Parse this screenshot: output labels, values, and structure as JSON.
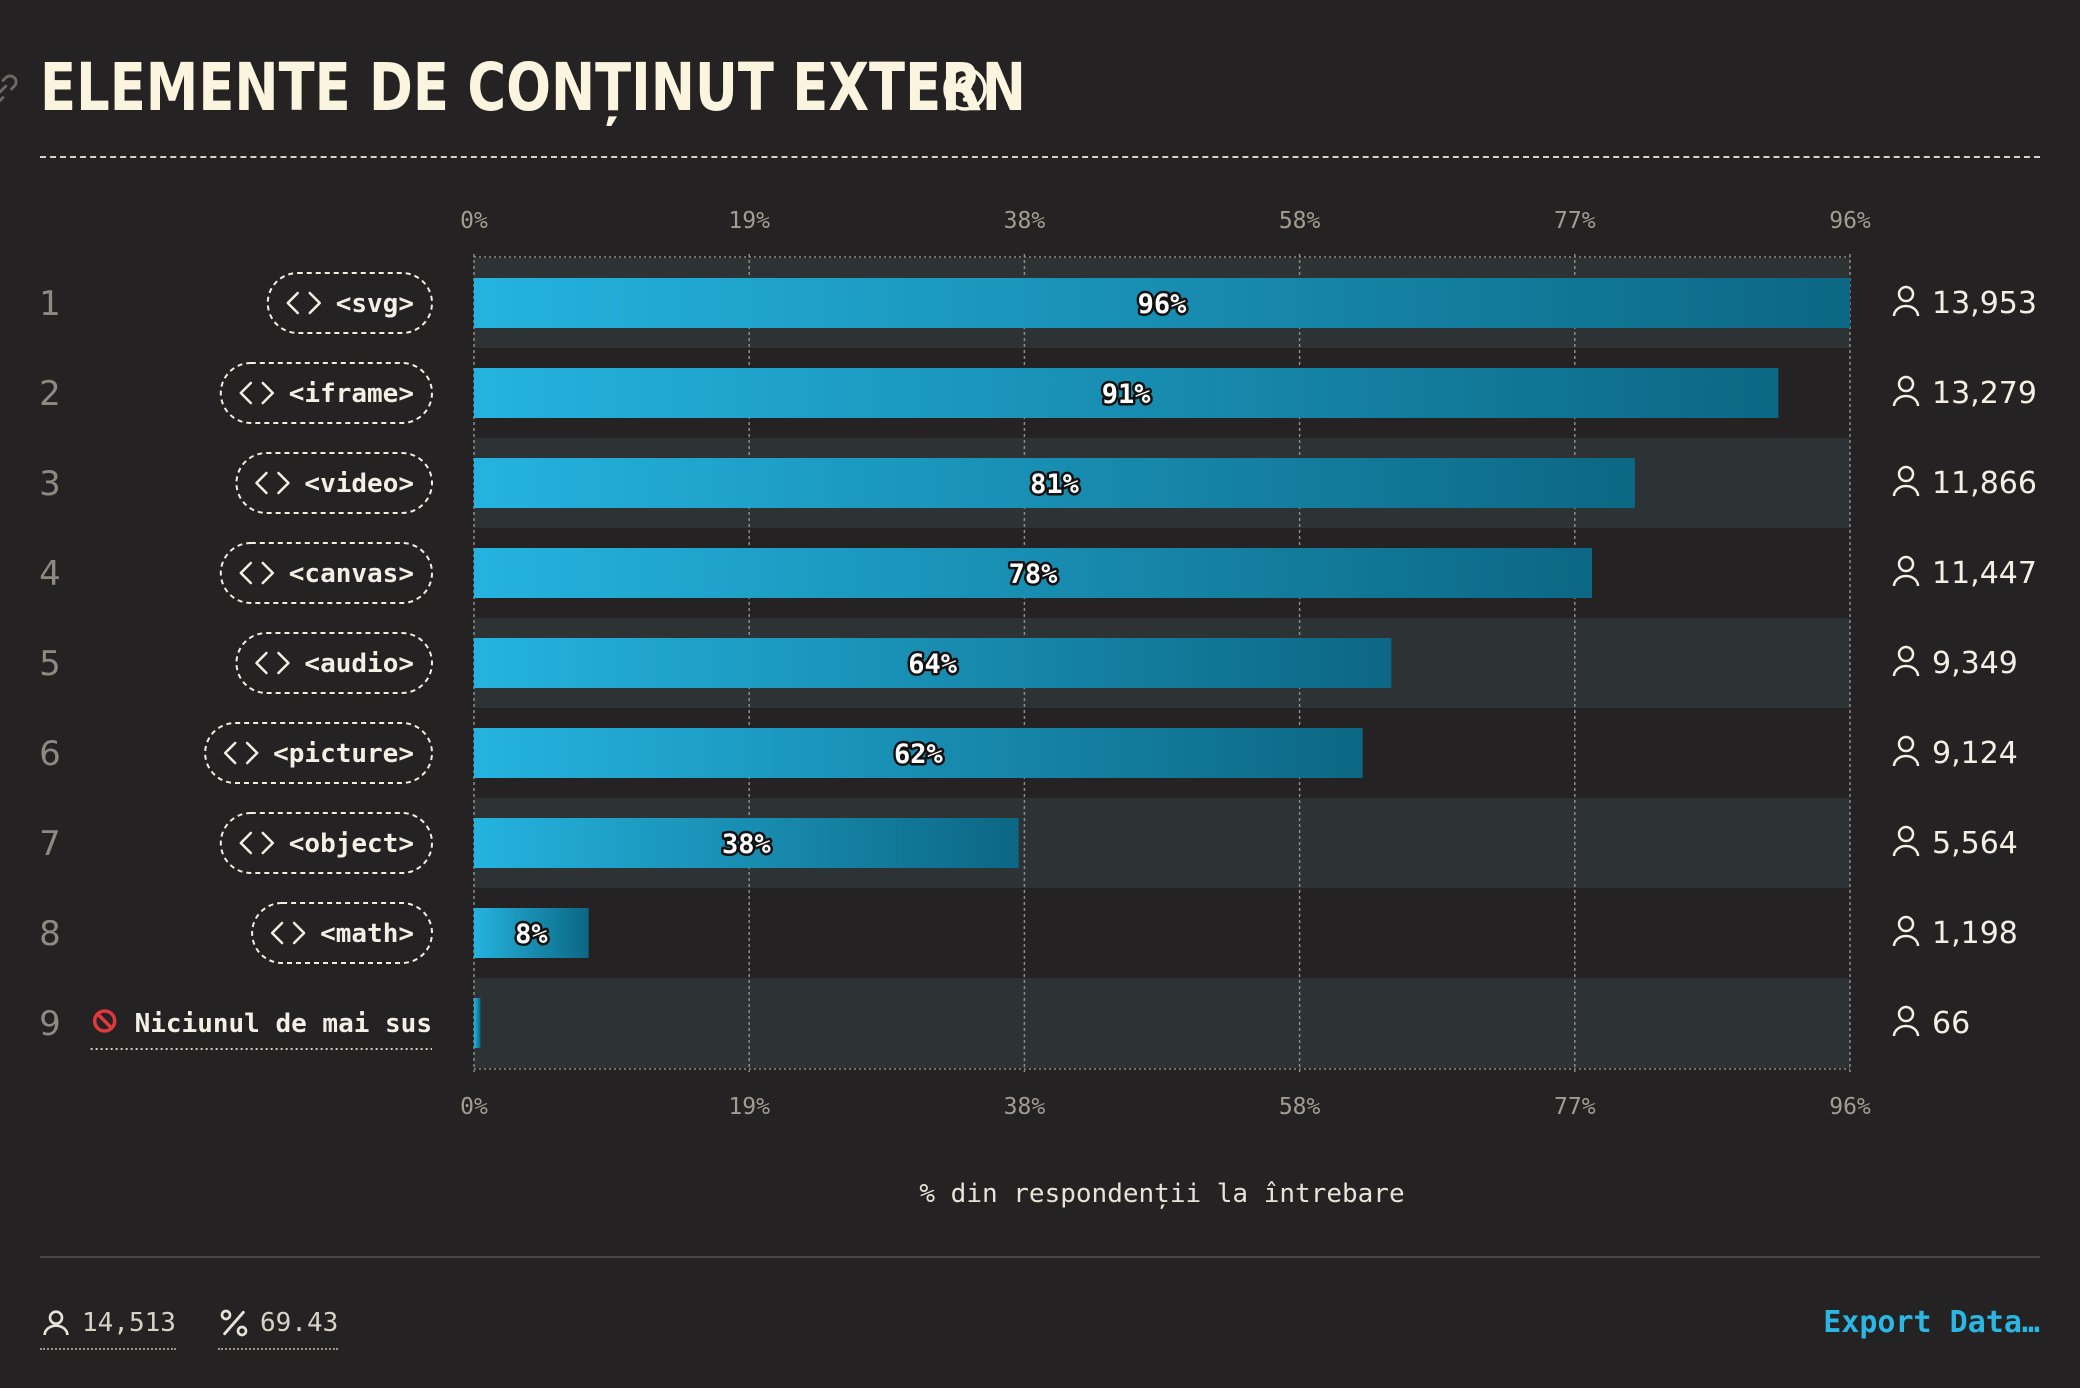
{
  "header": {
    "title": "ELEMENTE DE CONȚINUT EXTERN",
    "link_icon": "link-icon",
    "help_icon": "question-circle-icon"
  },
  "chart_data": {
    "type": "bar",
    "orientation": "horizontal",
    "title": "ELEMENTE DE CONȚINUT EXTERN",
    "xlabel": "% din respondenții la întrebare",
    "xlim": [
      0,
      96
    ],
    "xticks": [
      "0%",
      "19%",
      "38%",
      "58%",
      "77%",
      "96%"
    ],
    "xtick_values": [
      0,
      19.2,
      38.4,
      57.6,
      76.8,
      96
    ],
    "grid": true,
    "categories": [
      "<svg>",
      "<iframe>",
      "<video>",
      "<canvas>",
      "<audio>",
      "<picture>",
      "<object>",
      "<math>",
      "Niciunul de mai sus"
    ],
    "ranks": [
      "1",
      "2",
      "3",
      "4",
      "5",
      "6",
      "7",
      "8",
      "9"
    ],
    "category_icons": [
      "code-icon",
      "code-icon",
      "code-icon",
      "code-icon",
      "code-icon",
      "code-icon",
      "code-icon",
      "code-icon",
      "prohibited-icon"
    ],
    "values": [
      96,
      91,
      81,
      78,
      64,
      62,
      38,
      8,
      0.45
    ],
    "value_labels": [
      "96%",
      "91%",
      "81%",
      "78%",
      "64%",
      "62%",
      "38%",
      "8%",
      ""
    ],
    "counts": [
      "13,953",
      "13,279",
      "11,866",
      "11,447",
      "9,349",
      "9,124",
      "5,564",
      "1,198",
      "66"
    ],
    "count_icon": "user-icon",
    "colors": {
      "bar_start": "#24b3df",
      "bar_end": "#0c6784",
      "row_band": "#2d3235",
      "grid": "#8c8b86"
    }
  },
  "footer": {
    "respondents": "14,513",
    "respondents_icon": "user-icon",
    "percent": "69.43",
    "percent_icon": "percent-icon",
    "export_label": "Export Data…"
  }
}
